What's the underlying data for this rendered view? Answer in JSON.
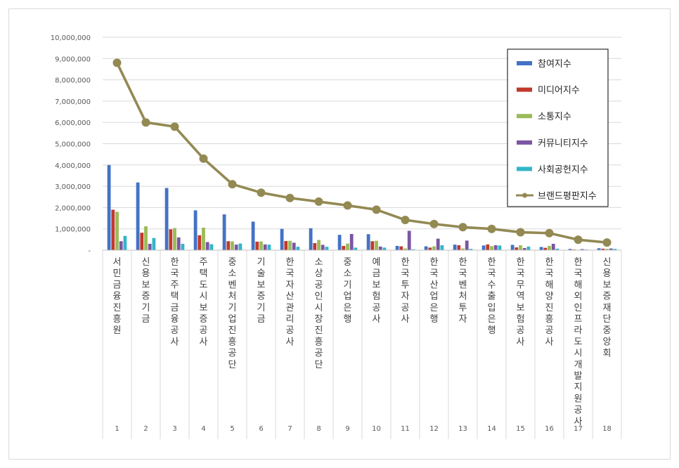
{
  "chart_data": {
    "type": "bar",
    "categories": [
      "서민금융진흥원",
      "신용보증기금",
      "한국주택금융공사",
      "주택도시보증공사",
      "중소벤처기업진흥공단",
      "기술보증기금",
      "한국자산관리공사",
      "소상공인시장진흥공단",
      "중소기업은행",
      "예금보험공사",
      "한국투자공사",
      "한국산업은행",
      "한국벤처투자",
      "한국수출입은행",
      "한국무역보험공사",
      "한국해양진흥공사",
      "한국해외인프라도시개발지원공사",
      "신용보증재단중앙회"
    ],
    "ranks": [
      "1",
      "2",
      "3",
      "4",
      "5",
      "6",
      "7",
      "8",
      "9",
      "10",
      "11",
      "12",
      "13",
      "14",
      "15",
      "16",
      "17",
      "18"
    ],
    "y_ticks": [
      "-",
      "1,000,000",
      "2,000,000",
      "3,000,000",
      "4,000,000",
      "5,000,000",
      "6,000,000",
      "7,000,000",
      "8,000,000",
      "9,000,000",
      "10,000,000"
    ],
    "ylim": [
      0,
      10000000
    ],
    "legend_position": "top-right",
    "grid": true,
    "series": [
      {
        "name": "참여지수",
        "kind": "bar",
        "color": "#4472c4",
        "values": [
          4000000,
          3180000,
          2920000,
          1870000,
          1680000,
          1340000,
          1000000,
          1030000,
          720000,
          750000,
          200000,
          180000,
          260000,
          220000,
          250000,
          150000,
          60000,
          90000
        ]
      },
      {
        "name": "미디어지수",
        "kind": "bar",
        "color": "#c0392b",
        "values": [
          1900000,
          820000,
          980000,
          700000,
          420000,
          400000,
          430000,
          330000,
          200000,
          420000,
          180000,
          120000,
          230000,
          270000,
          130000,
          110000,
          30000,
          70000
        ]
      },
      {
        "name": "소통지수",
        "kind": "bar",
        "color": "#9bbb59",
        "values": [
          1800000,
          1120000,
          1040000,
          1060000,
          410000,
          410000,
          440000,
          480000,
          310000,
          440000,
          80000,
          180000,
          80000,
          190000,
          230000,
          200000,
          20000,
          60000
        ]
      },
      {
        "name": "커뮤니티지수",
        "kind": "bar",
        "color": "#7a56a3",
        "values": [
          420000,
          300000,
          600000,
          380000,
          260000,
          270000,
          350000,
          250000,
          760000,
          170000,
          910000,
          540000,
          450000,
          230000,
          100000,
          300000,
          50000,
          80000
        ]
      },
      {
        "name": "사회공헌지수",
        "kind": "bar",
        "color": "#33b5c9",
        "values": [
          670000,
          570000,
          300000,
          280000,
          310000,
          260000,
          160000,
          160000,
          120000,
          120000,
          40000,
          230000,
          60000,
          220000,
          170000,
          70000,
          30000,
          60000
        ]
      },
      {
        "name": "브랜드평판지수",
        "kind": "line",
        "color": "#938953",
        "values": [
          8800000,
          6000000,
          5800000,
          4300000,
          3100000,
          2700000,
          2450000,
          2280000,
          2100000,
          1900000,
          1420000,
          1230000,
          1080000,
          1000000,
          840000,
          800000,
          490000,
          360000
        ]
      }
    ]
  }
}
